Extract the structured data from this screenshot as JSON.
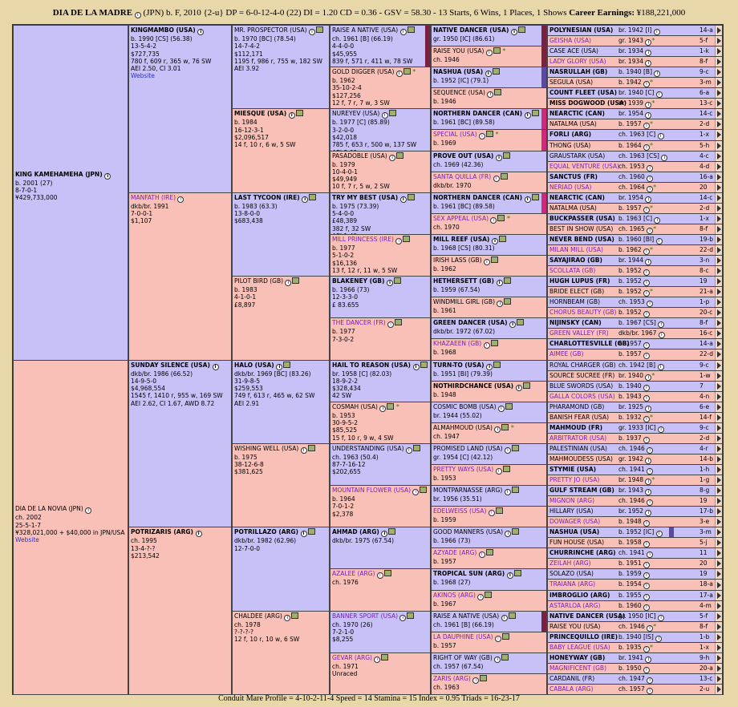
{
  "title": {
    "name": "DIA DE LA MADRE",
    "rest": "(JPN) b. F, 2010 {2-u} DP = 6-0-12-4-0 (22) DI = 1.20  CD = 0.36 - GSV = 58.30 - 13 Starts, 6 Wins, 1 Places, 1 Shows",
    "earn_label": "Career Earnings:",
    "earn": "¥188,221,000"
  },
  "footer": "Conduit Mare Profile = 4-10-2-11-4   Speed = 14   Stamina = 15   Index = 0.95   Triads = 16-23-17",
  "gen1": [
    {
      "sex": "m",
      "name": "KING KAMEHAMEHA (JPN)",
      "bold": true,
      "icon": true,
      "lines": [
        "b. 2001 (27)",
        "8-7-0-1",
        "¥429,733,000"
      ]
    },
    {
      "sex": "f",
      "name": "DIA DE LA NOVIA (JPN)",
      "bold": false,
      "icon": true,
      "lines": [
        "ch. 2002",
        "25-5-1-7",
        "¥328,021,000 + $40,000 in JPN/USA"
      ],
      "web": "Website"
    }
  ],
  "gen2": [
    {
      "sex": "m",
      "name": "KINGMAMBO (USA)",
      "bold": true,
      "icon": true,
      "lines": [
        "b. 1990 [CS] (56.38)",
        "13-5-4-2",
        "$727,735",
        "780 f, 609 r, 365 w, 76 SW",
        "AEI 2.50, CI 3.01"
      ],
      "web": "Website"
    },
    {
      "sex": "f",
      "name": "MANFATH (IRE)",
      "bold": false,
      "purple": true,
      "icon": true,
      "lines": [
        "dkb/br. 1991",
        "7-0-0-1",
        "$1,107"
      ]
    },
    {
      "sex": "m",
      "name": "SUNDAY SILENCE (USA)",
      "bold": true,
      "icon": true,
      "lines": [
        "dkb/br. 1986 (66.52)",
        "14-9-5-0",
        "$4,968,554",
        "1545 f, 1410 r, 955 w, 169 SW",
        "AEI 2.62, CI 1.67, AWD 8.72"
      ]
    },
    {
      "sex": "f",
      "name": "POTRIZARIS (ARG)",
      "bold": true,
      "icon": true,
      "lines": [
        "ch. 1995",
        "13-4-?-?",
        "$213,542"
      ]
    }
  ],
  "gen3": [
    {
      "sex": "m",
      "name": "MR. PROSPECTOR (USA)",
      "icon": true,
      "lines": [
        "b. 1970 [BC] (78.54)",
        "14-7-4-2",
        "$112,171",
        "1195 f, 986 r, 755 w, 182 SW",
        "AEI 3.92"
      ]
    },
    {
      "sex": "f",
      "name": "MIESQUE (USA)",
      "bold": true,
      "icon": true,
      "lines": [
        "b. 1984",
        "16-12-3-1",
        "$2,096,517",
        "14 f, 10 r, 6 w, 5 SW"
      ]
    },
    {
      "sex": "m",
      "name": "LAST TYCOON (IRE)",
      "bold": true,
      "icon": true,
      "lines": [
        "b. 1983 (63.3)",
        "13-8-0-0",
        "$683,438"
      ]
    },
    {
      "sex": "f",
      "name": "PILOT BIRD (GB)",
      "icon": true,
      "lines": [
        "b. 1983",
        "4-1-0-1",
        "£8,897"
      ]
    },
    {
      "sex": "m",
      "name": "HALO (USA)",
      "bold": true,
      "icon": true,
      "lines": [
        "dkb/br. 1969 [BC] (83.26)",
        "31-9-8-5",
        "$259,553",
        "749 f, 613 r, 465 w, 62 SW",
        "AEI 2.91"
      ]
    },
    {
      "sex": "f",
      "name": "WISHING WELL (USA)",
      "icon": true,
      "lines": [
        "b. 1975",
        "38-12-6-8",
        "$381,625"
      ]
    },
    {
      "sex": "m",
      "name": "POTRILLAZO (ARG)",
      "bold": true,
      "icon": true,
      "lines": [
        "dkb/br. 1982 (62.96)",
        "12-7-0-0"
      ]
    },
    {
      "sex": "f",
      "name": "CHALDEE (ARG)",
      "icon": true,
      "lines": [
        "ch. 1978",
        "?-?-?-?",
        "12 f, 10 r, 10 w, 6 SW"
      ]
    }
  ],
  "gen4": [
    {
      "sex": "m",
      "name": "RAISE A NATIVE (USA)",
      "lines": [
        "ch. 1961 [B] (66.19)",
        "4-4-0-0",
        "$45,955",
        "839 f, 571 r, 411 w, 78 SW"
      ],
      "bar": "#7a2040"
    },
    {
      "sex": "f",
      "name": "GOLD DIGGER (USA)",
      "star": true,
      "lines": [
        "b. 1962",
        "35-10-2-4",
        "$127,256",
        "12 f, 7 r, 7 w, 3 SW"
      ]
    },
    {
      "sex": "m",
      "name": "NUREYEV (USA)",
      "lines": [
        "b. 1977 [C] (85.89)",
        "3-2-0-0",
        "$42,018",
        "785 f, 653 r, 500 w, 137 SW",
        "AEI 3.69"
      ]
    },
    {
      "sex": "f",
      "name": "PASADOBLE (USA)",
      "lines": [
        "b. 1979",
        "10-4-0-1",
        "$49,949",
        "10 f, 7 r, 5 w, 2 SW"
      ]
    },
    {
      "sex": "m",
      "name": "TRY MY BEST (USA)",
      "bold": true,
      "lines": [
        "b. 1975 (73.39)",
        "5-4-0-0",
        "£48,389",
        "382 f, 32 SW",
        "AEI 1.49"
      ]
    },
    {
      "sex": "f",
      "name": "MILL PRINCESS (IRE)",
      "purple": true,
      "lines": [
        "b. 1977",
        "5-1-0-2",
        "$16,136",
        "13 f, 12 r, 11 w, 5 SW"
      ]
    },
    {
      "sex": "m",
      "name": "BLAKENEY (GB)",
      "bold": true,
      "lines": [
        "b. 1966 (73)",
        "12-3-3-0",
        "£ 83.655"
      ]
    },
    {
      "sex": "f",
      "name": "THE DANCER (FR)",
      "purple": true,
      "lines": [
        "b. 1977",
        "7-3-0-2"
      ]
    },
    {
      "sex": "m",
      "name": "HAIL TO REASON (USA)",
      "bold": true,
      "lines": [
        "br. 1958 [C] (82.03)",
        "18-9-2-2",
        "$328,434",
        "42 SW"
      ]
    },
    {
      "sex": "f",
      "name": "COSMAH (USA)",
      "star": true,
      "lines": [
        "b. 1953",
        "30-9-5-2",
        "$85,525",
        "15 f, 10 r, 9 w, 4 SW"
      ]
    },
    {
      "sex": "m",
      "name": "UNDERSTANDING (USA)",
      "lines": [
        "ch. 1963 (50.4)",
        "87-7-16-12",
        "$202,655"
      ]
    },
    {
      "sex": "f",
      "name": "MOUNTAIN FLOWER (USA)",
      "purple": true,
      "lines": [
        "b. 1964",
        "7-0-1-2",
        "$2,378"
      ]
    },
    {
      "sex": "m",
      "name": "AHMAD (ARG)",
      "bold": true,
      "lines": [
        "dkb/br. 1975 (67.54)"
      ]
    },
    {
      "sex": "f",
      "name": "AZALEE (ARG)",
      "purple": true,
      "lines": [
        "ch. 1976"
      ]
    },
    {
      "sex": "m",
      "name": "BANNER SPORT (USA)",
      "purple": true,
      "lines": [
        "ch. 1970 (26)",
        "7-2-1-0",
        "$8,255"
      ]
    },
    {
      "sex": "f",
      "name": "GEVAR (ARG)",
      "purple": true,
      "lines": [
        "ch. 1971",
        "Unraced"
      ]
    }
  ],
  "gen5": [
    {
      "sex": "m",
      "name": "NATIVE DANCER (USA)",
      "bold": true,
      "lines": [
        "gr. 1950 [IC] (86.61)"
      ],
      "bar": "#7a2040"
    },
    {
      "sex": "f",
      "name": "RAISE YOU (USA)",
      "star": true,
      "lines": [
        "ch. 1946"
      ],
      "bar": "#7a2040"
    },
    {
      "sex": "m",
      "name": "NASHUA (USA)",
      "bold": true,
      "lines": [
        "b. 1952 [IC] (79.1)"
      ],
      "bar": "#5b4aa0"
    },
    {
      "sex": "f",
      "name": "SEQUENCE (USA)",
      "lines": [
        "b. 1946"
      ]
    },
    {
      "sex": "m",
      "name": "NORTHERN DANCER (CAN)",
      "bold": true,
      "lines": [
        "b. 1961 [BC] (89.58)"
      ],
      "bar": "#d0287a"
    },
    {
      "sex": "f",
      "name": "SPECIAL (USA)",
      "purple": true,
      "star": true,
      "lines": [
        "b. 1969"
      ],
      "bar": "#d0287a"
    },
    {
      "sex": "m",
      "name": "PROVE OUT (USA)",
      "bold": true,
      "lines": [
        "ch. 1969 (42.36)"
      ]
    },
    {
      "sex": "f",
      "name": "SANTA QUILLA (FR)",
      "purple": true,
      "lines": [
        "dkb/br. 1970"
      ]
    },
    {
      "sex": "m",
      "name": "NORTHERN DANCER (CAN)",
      "bold": true,
      "lines": [
        "b. 1961 [BC] (89.58)"
      ],
      "bar": "#d0287a"
    },
    {
      "sex": "f",
      "name": "SEX APPEAL (USA)",
      "purple": true,
      "star": true,
      "lines": [
        "ch. 1970"
      ]
    },
    {
      "sex": "m",
      "name": "MILL REEF (USA)",
      "bold": true,
      "lines": [
        "b. 1968 [CS] (80.31)"
      ]
    },
    {
      "sex": "f",
      "name": "IRISH LASS (GB)",
      "lines": [
        "b. 1962"
      ]
    },
    {
      "sex": "m",
      "name": "HETHERSETT (GB)",
      "bold": true,
      "lines": [
        "b. 1959 (67.54)"
      ]
    },
    {
      "sex": "f",
      "name": "WINDMILL GIRL (GB)",
      "lines": [
        "b. 1961"
      ]
    },
    {
      "sex": "m",
      "name": "GREEN DANCER (USA)",
      "bold": true,
      "lines": [
        "dkb/br. 1972 (67.02)"
      ]
    },
    {
      "sex": "f",
      "name": "KHAZAEEN (GB)",
      "purple": true,
      "lines": [
        "b. 1968"
      ]
    },
    {
      "sex": "m",
      "name": "TURN-TO (USA)",
      "bold": true,
      "lines": [
        "b. 1951 [BI] (79.39)"
      ]
    },
    {
      "sex": "f",
      "name": "NOTHIRDCHANCE (USA)",
      "bold": true,
      "lines": [
        "b. 1948"
      ]
    },
    {
      "sex": "m",
      "name": "COSMIC BOMB (USA)",
      "lines": [
        "br. 1944 (55.02)"
      ]
    },
    {
      "sex": "f",
      "name": "ALMAHMOUD (USA)",
      "star": true,
      "lines": [
        "ch. 1947"
      ]
    },
    {
      "sex": "m",
      "name": "PROMISED LAND (USA)",
      "lines": [
        "gr. 1954 [C] (42.12)"
      ]
    },
    {
      "sex": "f",
      "name": "PRETTY WAYS (USA)",
      "purple": true,
      "lines": [
        "b. 1953"
      ]
    },
    {
      "sex": "m",
      "name": "MONTPARNASSE (ARG)",
      "lines": [
        "br. 1956 (35.51)"
      ]
    },
    {
      "sex": "f",
      "name": "EDELWEISS (USA)",
      "purple": true,
      "lines": [
        "b. 1959"
      ]
    },
    {
      "sex": "m",
      "name": "GOOD MANNERS (USA)",
      "lines": [
        "b. 1966 (73)"
      ]
    },
    {
      "sex": "f",
      "name": "AZYADE (ARG)",
      "purple": true,
      "lines": [
        "b. 1957"
      ]
    },
    {
      "sex": "m",
      "name": "TROPICAL SUN (ARG)",
      "bold": true,
      "lines": [
        "b. 1968 (27)"
      ]
    },
    {
      "sex": "f",
      "name": "AKINOS (ARG)",
      "purple": true,
      "lines": [
        "b. 1967"
      ]
    },
    {
      "sex": "m",
      "name": "RAISE A NATIVE (USA)",
      "lines": [
        "ch. 1961 [B] (66.19)"
      ],
      "bar": "#7a2040"
    },
    {
      "sex": "f",
      "name": "LA DAUPHINE (USA)",
      "purple": true,
      "lines": [
        "b. 1957"
      ]
    },
    {
      "sex": "m",
      "name": "RIGHT OF WAY (GB)",
      "lines": [
        "ch. 1957 (67.54)"
      ]
    },
    {
      "sex": "f",
      "name": "ZARIS (ARG)",
      "purple": true,
      "lines": [
        "ch. 1963"
      ]
    }
  ],
  "gen6": [
    {
      "sex": "m",
      "name": "POLYNESIAN (USA)",
      "bold": true,
      "info": "br. 1942 [I]",
      "badge": "14-a"
    },
    {
      "sex": "f",
      "name": "GEISHA (USA)",
      "purple": true,
      "info": "gr. 1943",
      "star": true,
      "badge": "5-f"
    },
    {
      "sex": "m",
      "name": "CASE ACE (USA)",
      "info": "br. 1934",
      "badge": "1-k"
    },
    {
      "sex": "f",
      "name": "LADY GLORY (USA)",
      "purple": true,
      "info": "br. 1934",
      "badge": "8-f"
    },
    {
      "sex": "m",
      "name": "NASRULLAH (GB)",
      "bold": true,
      "info": "b. 1940 [B]",
      "badge": "9-c"
    },
    {
      "sex": "f",
      "name": "SEGULA (USA)",
      "info": "b. 1942",
      "star": true,
      "badge": "3-m"
    },
    {
      "sex": "m",
      "name": "COUNT FLEET (USA)",
      "bold": true,
      "info": "br. 1940 [C]",
      "badge": "6-a"
    },
    {
      "sex": "f",
      "name": "MISS DOGWOOD (USA)",
      "bold": true,
      "info": "br. 1939",
      "star": true,
      "badge": "13-c"
    },
    {
      "sex": "m",
      "name": "NEARCTIC (CAN)",
      "bold": true,
      "info": "br. 1954",
      "badge": "14-c"
    },
    {
      "sex": "f",
      "name": "NATALMA (USA)",
      "info": "b. 1957",
      "star": true,
      "badge": "2-d"
    },
    {
      "sex": "m",
      "name": "FORLI (ARG)",
      "bold": true,
      "info": "ch. 1963 [C]",
      "badge": "1-x"
    },
    {
      "sex": "f",
      "name": "THONG (USA)",
      "info": "b. 1964",
      "star": true,
      "badge": "5-h"
    },
    {
      "sex": "m",
      "name": "GRAUSTARK (USA)",
      "info": "ch. 1963 [CS]",
      "badge": "4-c"
    },
    {
      "sex": "f",
      "name": "EQUAL VENTURE (USA)",
      "purple": true,
      "info": "ch. 1953",
      "badge": "4-d"
    },
    {
      "sex": "m",
      "name": "SANCTUS (FR)",
      "bold": true,
      "info": "ch. 1960",
      "badge": "16-a"
    },
    {
      "sex": "f",
      "name": "NERIAD (USA)",
      "purple": true,
      "info": "ch. 1964",
      "star": true,
      "badge": "20"
    },
    {
      "sex": "m",
      "name": "NEARCTIC (CAN)",
      "bold": true,
      "info": "br. 1954",
      "badge": "14-c"
    },
    {
      "sex": "f",
      "name": "NATALMA (USA)",
      "info": "b. 1957",
      "star": true,
      "badge": "2-d"
    },
    {
      "sex": "m",
      "name": "BUCKPASSER (USA)",
      "bold": true,
      "info": "b. 1963 [C]",
      "badge": "1-x"
    },
    {
      "sex": "f",
      "name": "BEST IN SHOW (USA)",
      "info": "ch. 1965",
      "star": true,
      "badge": "8-f"
    },
    {
      "sex": "m",
      "name": "NEVER BEND (USA)",
      "bold": true,
      "info": "b. 1960 [BI]",
      "badge": "19-b"
    },
    {
      "sex": "f",
      "name": "MILAN MILL (USA)",
      "purple": true,
      "info": "b. 1962",
      "star": true,
      "badge": "22-d"
    },
    {
      "sex": "m",
      "name": "SAYAJIRAO (GB)",
      "bold": true,
      "info": "br. 1944",
      "badge": "3-n"
    },
    {
      "sex": "f",
      "name": "SCOLLATA (GB)",
      "purple": true,
      "info": "b. 1952",
      "badge": "8-c"
    },
    {
      "sex": "m",
      "name": "HUGH LUPUS (FR)",
      "bold": true,
      "info": "b. 1952",
      "badge": "19"
    },
    {
      "sex": "f",
      "name": "BRIDE ELECT (GB)",
      "info": "b. 1952",
      "star": true,
      "badge": "21-a"
    },
    {
      "sex": "m",
      "name": "HORNBEAM (GB)",
      "info": "ch. 1953",
      "badge": "1-p"
    },
    {
      "sex": "f",
      "name": "CHORUS BEAUTY (GB)",
      "purple": true,
      "info": "b. 1952",
      "badge": "20-c"
    },
    {
      "sex": "m",
      "name": "NIJINSKY (CAN)",
      "bold": true,
      "info": "b. 1967 [CS]",
      "badge": "8-f"
    },
    {
      "sex": "f",
      "name": "GREEN VALLEY (FR)",
      "purple": true,
      "info": "dkb/br. 1967",
      "badge": "16-c"
    },
    {
      "sex": "m",
      "name": "CHARLOTTESVILLE (GB)",
      "bold": true,
      "info": "b. 1957",
      "badge": "14-a"
    },
    {
      "sex": "f",
      "name": "AIMEE (GB)",
      "purple": true,
      "info": "b. 1957",
      "badge": "22-d"
    },
    {
      "sex": "m",
      "name": "ROYAL CHARGER (GB)",
      "info": "ch. 1942 [B]",
      "badge": "9-c"
    },
    {
      "sex": "f",
      "name": "SOURCE SUCREE (FR)",
      "info": "br. 1940",
      "star": true,
      "badge": "1-w"
    },
    {
      "sex": "m",
      "name": "BLUE SWORDS (USA)",
      "info": "b. 1940",
      "badge": "7"
    },
    {
      "sex": "f",
      "name": "GALLA COLORS (USA)",
      "purple": true,
      "info": "b. 1943",
      "badge": "4-n"
    },
    {
      "sex": "m",
      "name": "PHARAMOND (GB)",
      "info": "br. 1925",
      "badge": "6-e"
    },
    {
      "sex": "f",
      "name": "BANISH FEAR (USA)",
      "info": "b. 1932",
      "star": true,
      "badge": "14-f"
    },
    {
      "sex": "m",
      "name": "MAHMOUD (FR)",
      "bold": true,
      "info": "gr. 1933 [IC]",
      "badge": "9-c"
    },
    {
      "sex": "f",
      "name": "ARBITRATOR (USA)",
      "purple": true,
      "info": "b. 1937",
      "badge": "2-d"
    },
    {
      "sex": "m",
      "name": "PALESTINIAN (USA)",
      "info": "ch. 1946",
      "badge": "4-r"
    },
    {
      "sex": "f",
      "name": "MAHMOUDESS (USA)",
      "info": "gr. 1942",
      "badge": "14-b"
    },
    {
      "sex": "m",
      "name": "STYMIE (USA)",
      "bold": true,
      "info": "ch. 1941",
      "badge": "1-h"
    },
    {
      "sex": "f",
      "name": "PRETTY JO (USA)",
      "purple": true,
      "info": "br. 1948",
      "star": true,
      "badge": "1-g"
    },
    {
      "sex": "m",
      "name": "GULF STREAM (GB)",
      "bold": true,
      "info": "br. 1943",
      "badge": "8-g"
    },
    {
      "sex": "f",
      "name": "MIGNON (ARG)",
      "purple": true,
      "info": "ch. 1946",
      "badge": "19"
    },
    {
      "sex": "m",
      "name": "HILLARY (USA)",
      "info": "br. 1952",
      "badge": "17-b"
    },
    {
      "sex": "f",
      "name": "DOWAGER (USA)",
      "purple": true,
      "info": "b. 1948",
      "badge": "3-e"
    },
    {
      "sex": "m",
      "name": "NASHUA (USA)",
      "bold": true,
      "info": "b. 1952 [IC]",
      "badge": "3-m",
      "bar": "#5b4aa0"
    },
    {
      "sex": "f",
      "name": "FUN HOUSE (USA)",
      "info": "b. 1958",
      "badge": "5-j"
    },
    {
      "sex": "m",
      "name": "CHURRINCHE (ARG)",
      "bold": true,
      "info": "ch. 1941",
      "badge": "11"
    },
    {
      "sex": "f",
      "name": "ZEILAH (ARG)",
      "purple": true,
      "info": "b. 1951",
      "badge": "20"
    },
    {
      "sex": "m",
      "name": "SOLAZO (USA)",
      "info": "b. 1959",
      "badge": "19"
    },
    {
      "sex": "f",
      "name": "TRAIANA (ARG)",
      "purple": true,
      "info": "b. 1954",
      "badge": "18-a"
    },
    {
      "sex": "m",
      "name": "IMBROGLIO (ARG)",
      "bold": true,
      "info": "b. 1955",
      "badge": "17-a"
    },
    {
      "sex": "f",
      "name": "ASTARLOA (ARG)",
      "purple": true,
      "info": "b. 1960",
      "badge": "4-m"
    },
    {
      "sex": "m",
      "name": "NATIVE DANCER (USA)",
      "bold": true,
      "info": "gr. 1950 [IC]",
      "badge": "5-f"
    },
    {
      "sex": "f",
      "name": "RAISE YOU (USA)",
      "info": "ch. 1946",
      "star": true,
      "badge": "8-f"
    },
    {
      "sex": "m",
      "name": "PRINCEQUILLO (IRE)",
      "bold": true,
      "info": "b. 1940 [IS]",
      "badge": "1-b"
    },
    {
      "sex": "f",
      "name": "BABY LEAGUE (USA)",
      "purple": true,
      "info": "b. 1935",
      "star": true,
      "badge": "1-x"
    },
    {
      "sex": "m",
      "name": "HONEYWAY (GB)",
      "bold": true,
      "info": "br. 1941",
      "badge": "9-h"
    },
    {
      "sex": "f",
      "name": "MAGNIFICENT (GB)",
      "purple": true,
      "info": "b. 1950",
      "badge": "20-a"
    },
    {
      "sex": "m",
      "name": "CARDANIL (FR)",
      "info": "ch. 1947",
      "badge": "13-c"
    },
    {
      "sex": "f",
      "name": "CABALA (ARG)",
      "purple": true,
      "info": "ch. 1957",
      "badge": "2-u"
    }
  ]
}
